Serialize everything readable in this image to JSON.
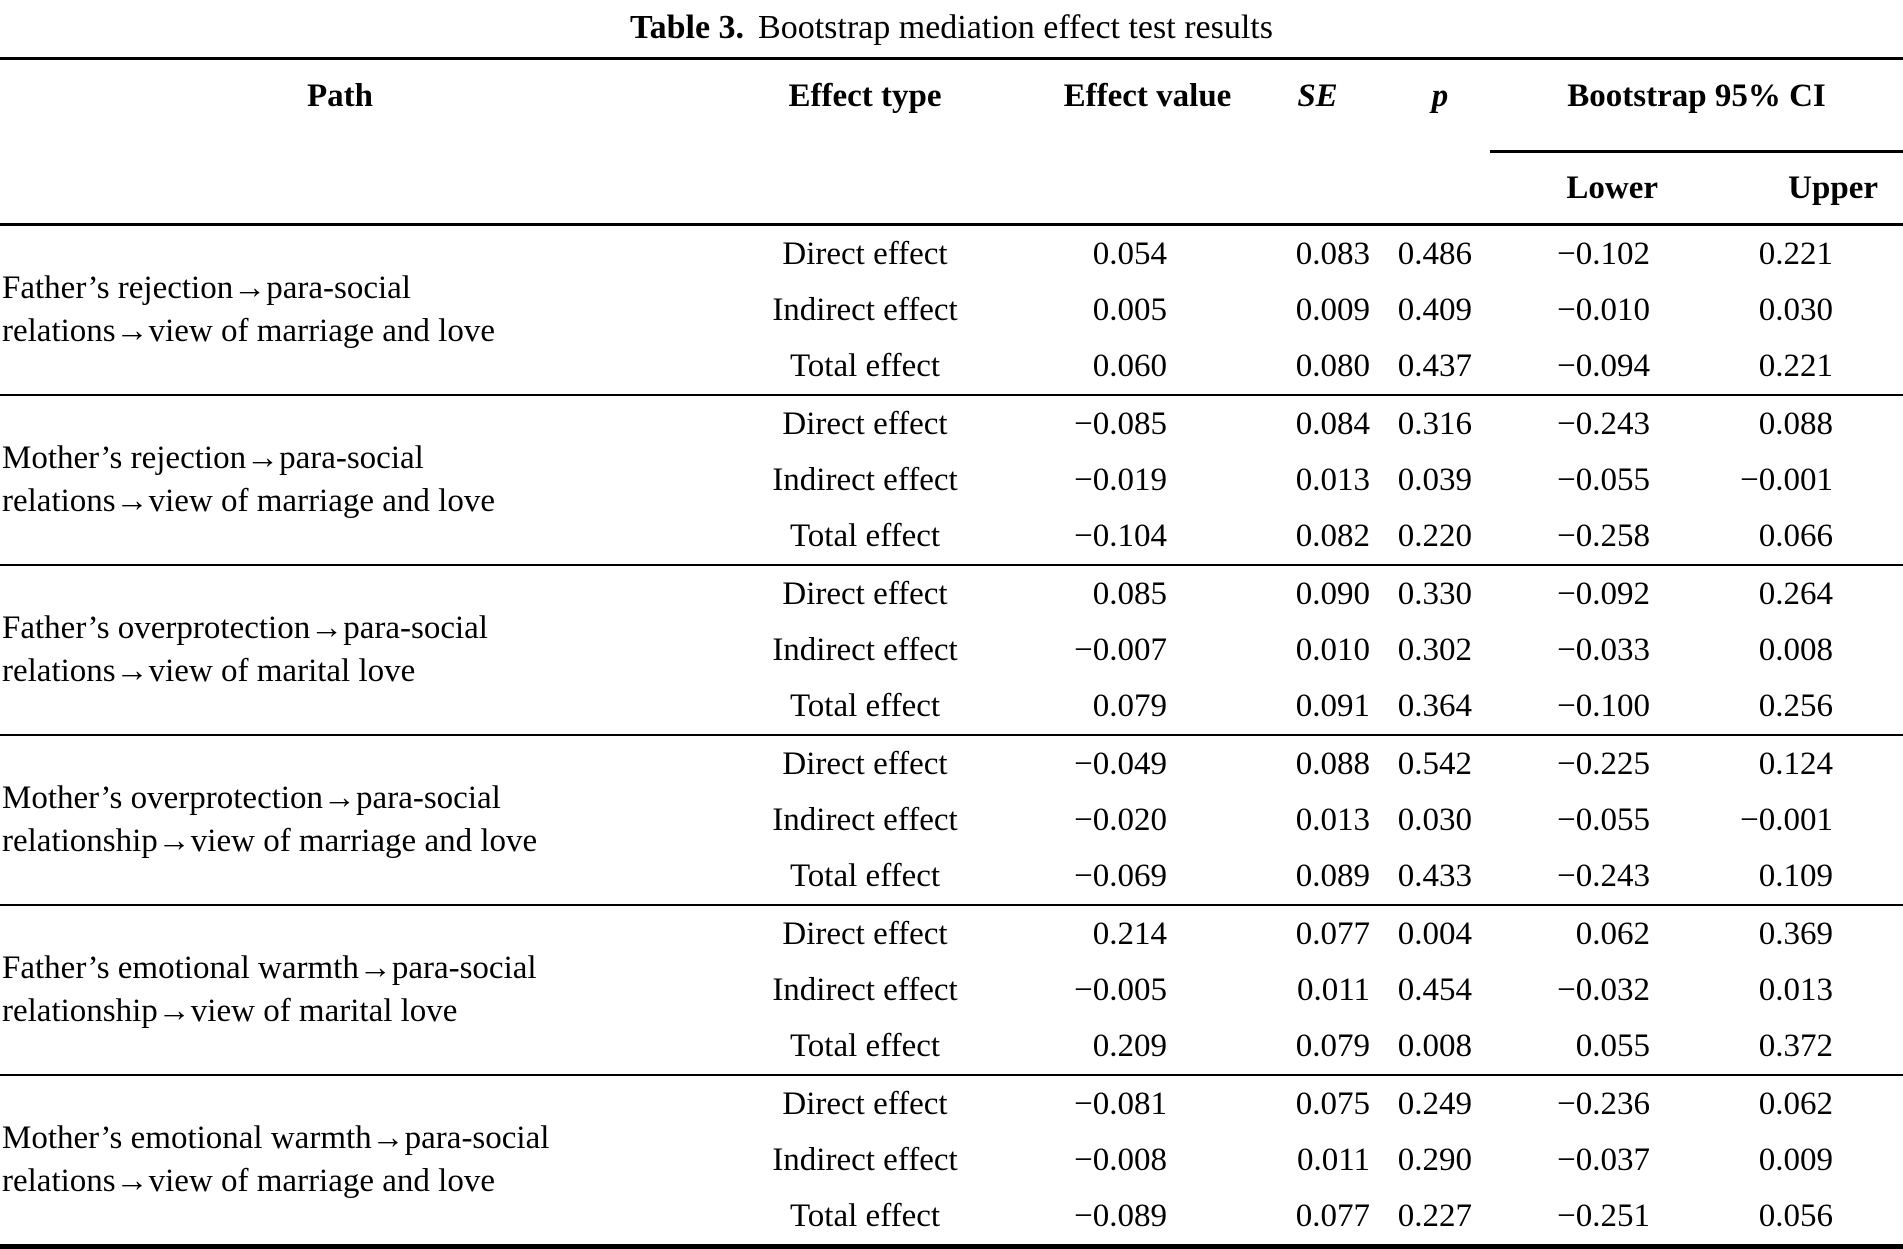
{
  "title": {
    "label": "Table 3.",
    "text": "Bootstrap mediation effect test results"
  },
  "table": {
    "columns": {
      "path": "Path",
      "effect_type": "Effect type",
      "effect_value": "Effect value",
      "se": "SE",
      "p": "p",
      "ci": "Bootstrap 95% CI",
      "lower": "Lower",
      "upper": "Upper"
    },
    "groups": [
      {
        "path": "Father’s rejection→para-social relations→view of marriage and love",
        "rows": [
          {
            "effect_type": "Direct effect",
            "effect_value": "0.054",
            "se": "0.083",
            "p": "0.486",
            "lower": "−0.102",
            "upper": "0.221"
          },
          {
            "effect_type": "Indirect effect",
            "effect_value": "0.005",
            "se": "0.009",
            "p": "0.409",
            "lower": "−0.010",
            "upper": "0.030"
          },
          {
            "effect_type": "Total effect",
            "effect_value": "0.060",
            "se": "0.080",
            "p": "0.437",
            "lower": "−0.094",
            "upper": "0.221"
          }
        ]
      },
      {
        "path": "Mother’s rejection→para-social relations→view of marriage and love",
        "rows": [
          {
            "effect_type": "Direct effect",
            "effect_value": "−0.085",
            "se": "0.084",
            "p": "0.316",
            "lower": "−0.243",
            "upper": "0.088"
          },
          {
            "effect_type": "Indirect effect",
            "effect_value": "−0.019",
            "se": "0.013",
            "p": "0.039",
            "lower": "−0.055",
            "upper": "−0.001"
          },
          {
            "effect_type": "Total effect",
            "effect_value": "−0.104",
            "se": "0.082",
            "p": "0.220",
            "lower": "−0.258",
            "upper": "0.066"
          }
        ]
      },
      {
        "path": "Father’s overprotection→para-social relations→view of marital love",
        "rows": [
          {
            "effect_type": "Direct effect",
            "effect_value": "0.085",
            "se": "0.090",
            "p": "0.330",
            "lower": "−0.092",
            "upper": "0.264"
          },
          {
            "effect_type": "Indirect effect",
            "effect_value": "−0.007",
            "se": "0.010",
            "p": "0.302",
            "lower": "−0.033",
            "upper": "0.008"
          },
          {
            "effect_type": "Total effect",
            "effect_value": "0.079",
            "se": "0.091",
            "p": "0.364",
            "lower": "−0.100",
            "upper": "0.256"
          }
        ]
      },
      {
        "path": "Mother’s overprotection→para-social relationship→view of marriage and love",
        "rows": [
          {
            "effect_type": "Direct effect",
            "effect_value": "−0.049",
            "se": "0.088",
            "p": "0.542",
            "lower": "−0.225",
            "upper": "0.124"
          },
          {
            "effect_type": "Indirect effect",
            "effect_value": "−0.020",
            "se": "0.013",
            "p": "0.030",
            "lower": "−0.055",
            "upper": "−0.001"
          },
          {
            "effect_type": "Total effect",
            "effect_value": "−0.069",
            "se": "0.089",
            "p": "0.433",
            "lower": "−0.243",
            "upper": "0.109"
          }
        ]
      },
      {
        "path": "Father’s emotional warmth→para-social relationship→view of marital love",
        "rows": [
          {
            "effect_type": "Direct effect",
            "effect_value": "0.214",
            "se": "0.077",
            "p": "0.004",
            "lower": "0.062",
            "upper": "0.369"
          },
          {
            "effect_type": "Indirect effect",
            "effect_value": "−0.005",
            "se": "0.011",
            "p": "0.454",
            "lower": "−0.032",
            "upper": "0.013"
          },
          {
            "effect_type": "Total effect",
            "effect_value": "0.209",
            "se": "0.079",
            "p": "0.008",
            "lower": "0.055",
            "upper": "0.372"
          }
        ]
      },
      {
        "path": "Mother’s emotional warmth→para-social relations→view of marriage and love",
        "rows": [
          {
            "effect_type": "Direct effect",
            "effect_value": "−0.081",
            "se": "0.075",
            "p": "0.249",
            "lower": "−0.236",
            "upper": "0.062"
          },
          {
            "effect_type": "Indirect effect",
            "effect_value": "−0.008",
            "se": "0.011",
            "p": "0.290",
            "lower": "−0.037",
            "upper": "0.009"
          },
          {
            "effect_type": "Total effect",
            "effect_value": "−0.089",
            "se": "0.077",
            "p": "0.227",
            "lower": "−0.251",
            "upper": "0.056"
          }
        ]
      }
    ]
  },
  "colors": {
    "text": "#000000",
    "background": "#ffffff",
    "rule": "#000000"
  }
}
